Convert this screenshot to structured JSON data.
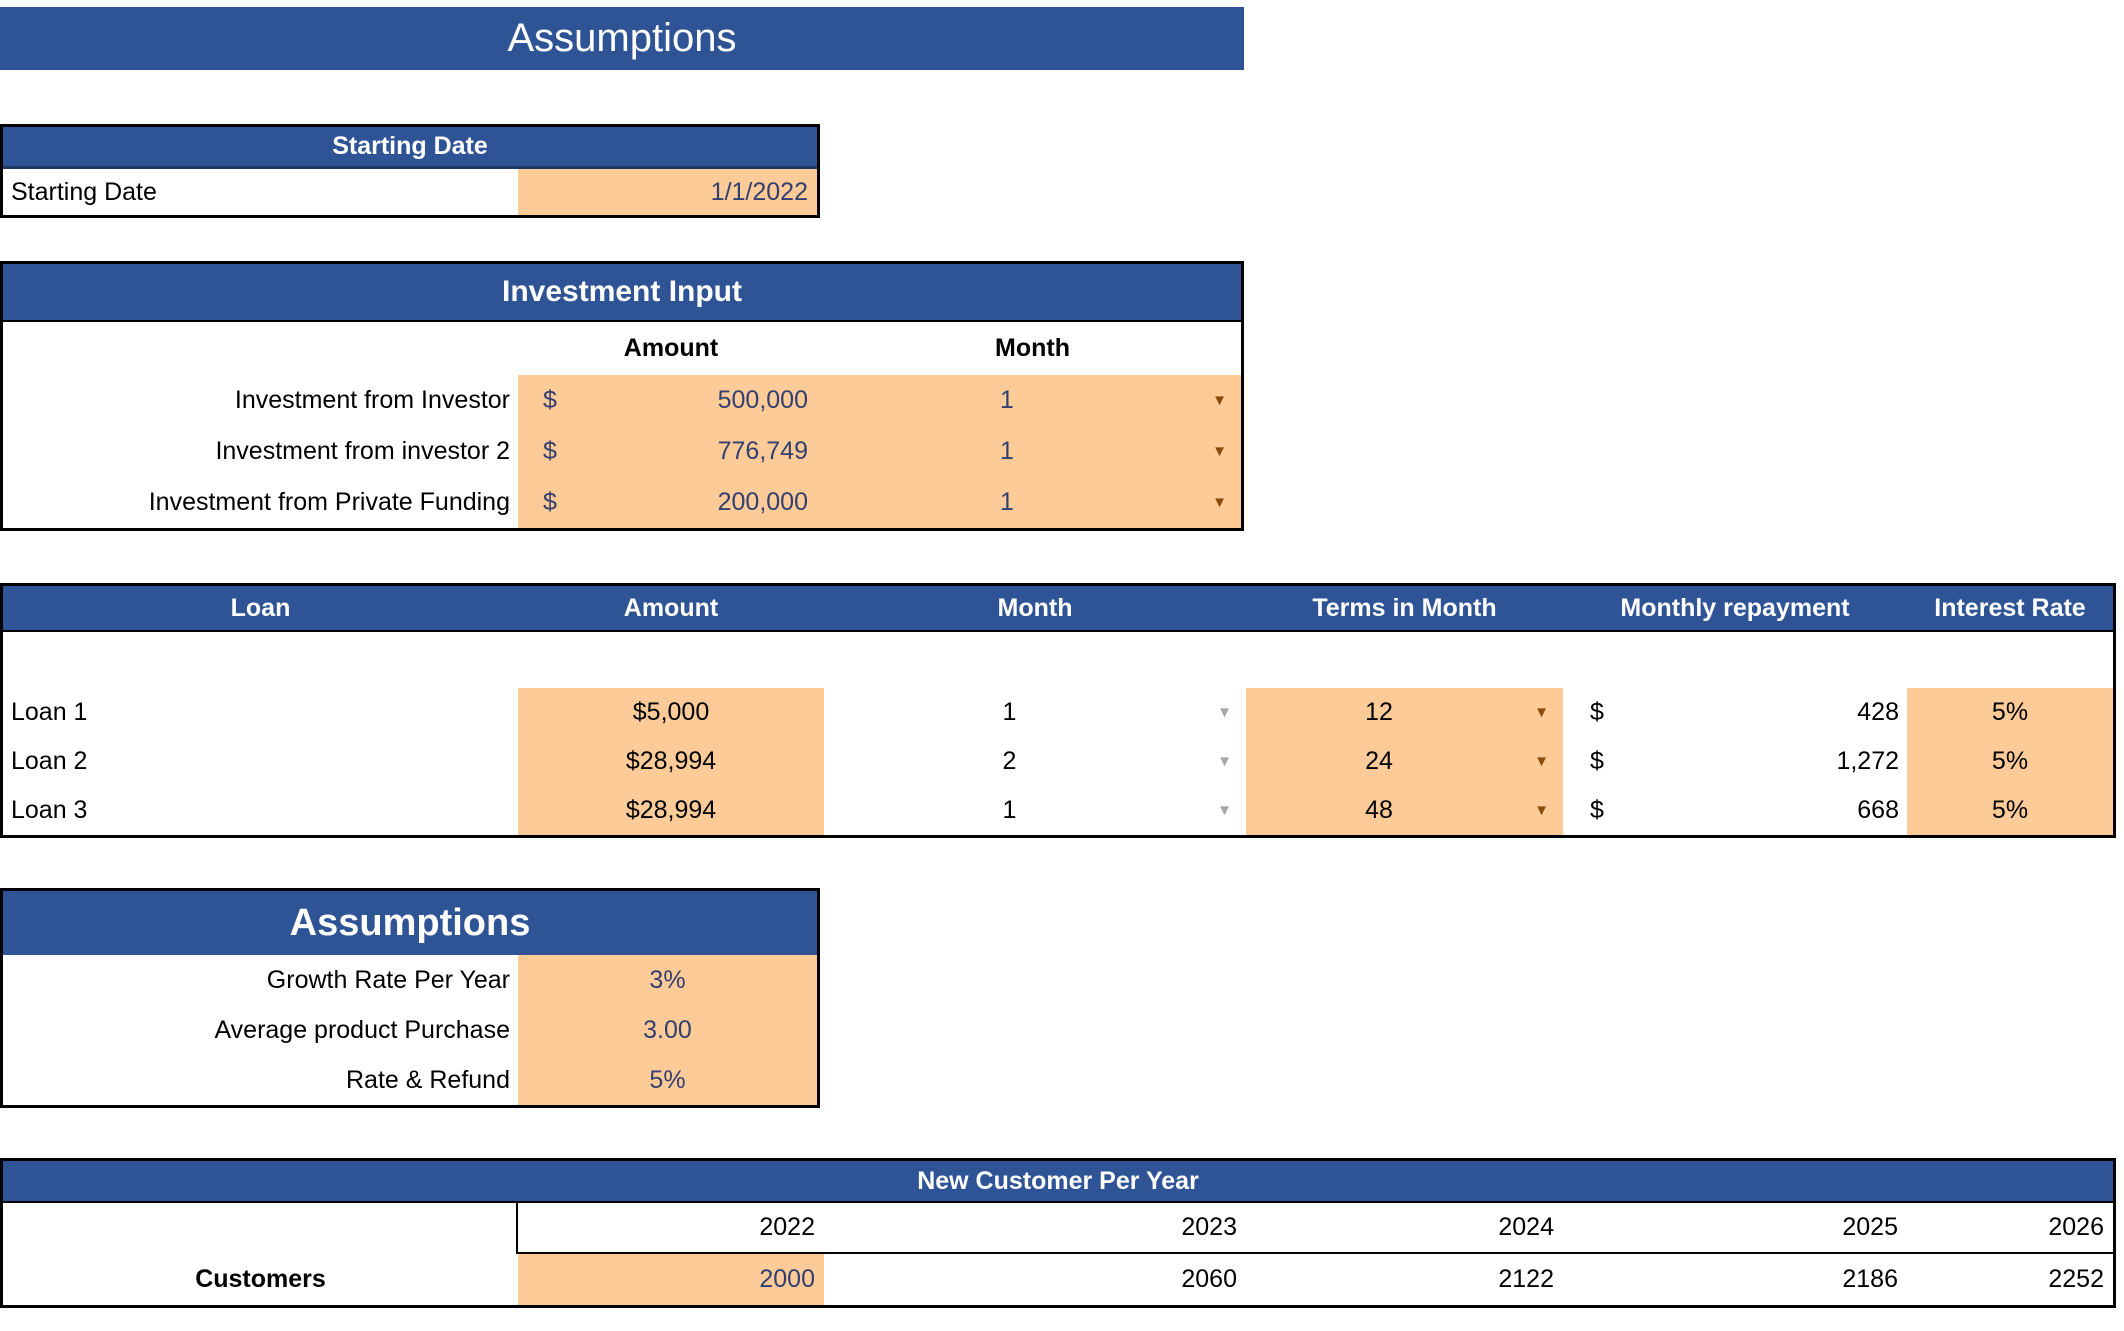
{
  "page": {
    "title": "Assumptions"
  },
  "colors": {
    "header_blue": "#2F5496",
    "input_orange": "#FCCB98",
    "value_navy": "#333F6F",
    "arrow_brown": "#8C4A0B",
    "arrow_gray": "#A6A6A6"
  },
  "icons": {
    "dropdown": "▼"
  },
  "starting_date_table": {
    "header": "Starting Date",
    "row_label": "Starting Date",
    "value": "1/1/2022"
  },
  "investment_table": {
    "title": "Investment Input",
    "col_amount": "Amount",
    "col_month": "Month",
    "rows": [
      {
        "label": "Investment from Investor",
        "currency": "$",
        "amount": "500,000",
        "month": "1"
      },
      {
        "label": "Investment from investor 2",
        "currency": "$",
        "amount": "776,749",
        "month": "1"
      },
      {
        "label": "Investment from Private Funding",
        "currency": "$",
        "amount": "200,000",
        "month": "1"
      }
    ]
  },
  "loan_table": {
    "headers": {
      "loan": "Loan",
      "amount": "Amount",
      "month": "Month",
      "terms": "Terms in Month",
      "repayment": "Monthly repayment",
      "interest": "Interest Rate"
    },
    "rows": [
      {
        "label": "Loan 1",
        "amount": "$5,000",
        "month": "1",
        "terms": "12",
        "currency": "$",
        "repayment": "428",
        "interest": "5%"
      },
      {
        "label": "Loan 2",
        "amount": "$28,994",
        "month": "2",
        "terms": "24",
        "currency": "$",
        "repayment": "1,272",
        "interest": "5%"
      },
      {
        "label": "Loan 3",
        "amount": "$28,994",
        "month": "1",
        "terms": "48",
        "currency": "$",
        "repayment": "668",
        "interest": "5%"
      }
    ]
  },
  "assumptions_table": {
    "title": "Assumptions",
    "rows": [
      {
        "label": "Growth Rate  Per Year",
        "value": "3%"
      },
      {
        "label": "Average product Purchase",
        "value": "3.00"
      },
      {
        "label": "Rate & Refund",
        "value": "5%"
      }
    ]
  },
  "customers_table": {
    "title": "New Customer Per Year",
    "years": [
      "2022",
      "2023",
      "2024",
      "2025",
      "2026"
    ],
    "row_label": "Customers",
    "values": [
      "2000",
      "2060",
      "2122",
      "2186",
      "2252"
    ]
  }
}
